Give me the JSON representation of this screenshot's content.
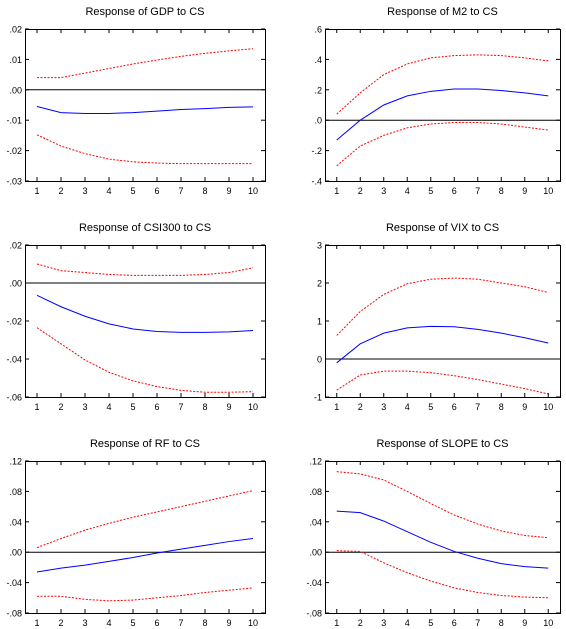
{
  "chart_data": [
    {
      "type": "line",
      "title": "Response of GDP to CS",
      "x": [
        1,
        2,
        3,
        4,
        5,
        6,
        7,
        8,
        9,
        10
      ],
      "ylim": [
        -0.03,
        0.02
      ],
      "yticks": [
        ".02",
        ".01",
        ".00",
        "-.01",
        "-.02",
        "-.03"
      ],
      "ytick_values": [
        0.02,
        0.01,
        0.0,
        -0.01,
        -0.02,
        -0.03
      ],
      "series": [
        {
          "role": "response",
          "color": "#0000ff",
          "style": "solid",
          "values": [
            -0.0055,
            -0.0075,
            -0.0078,
            -0.0078,
            -0.0075,
            -0.007,
            -0.0065,
            -0.0062,
            -0.0058,
            -0.0056
          ]
        },
        {
          "role": "upper band",
          "color": "#ff0000",
          "style": "dotted",
          "values": [
            0.004,
            0.004,
            0.0055,
            0.007,
            0.0085,
            0.0098,
            0.011,
            0.012,
            0.0128,
            0.0135
          ]
        },
        {
          "role": "lower band",
          "color": "#ff0000",
          "style": "dotted",
          "values": [
            -0.0148,
            -0.0185,
            -0.021,
            -0.0228,
            -0.0237,
            -0.0241,
            -0.0243,
            -0.0243,
            -0.0243,
            -0.0243
          ]
        }
      ]
    },
    {
      "type": "line",
      "title": "Response of M2 to CS",
      "x": [
        1,
        2,
        3,
        4,
        5,
        6,
        7,
        8,
        9,
        10
      ],
      "ylim": [
        -0.4,
        0.6
      ],
      "yticks": [
        ".6",
        ".4",
        ".2",
        ".0",
        "-.2",
        "-.4"
      ],
      "ytick_values": [
        0.6,
        0.4,
        0.2,
        0.0,
        -0.2,
        -0.4
      ],
      "series": [
        {
          "role": "response",
          "color": "#0000ff",
          "style": "solid",
          "values": [
            -0.13,
            0.0,
            0.1,
            0.16,
            0.19,
            0.205,
            0.205,
            0.195,
            0.18,
            0.16
          ]
        },
        {
          "role": "upper band",
          "color": "#ff0000",
          "style": "dotted",
          "values": [
            0.04,
            0.18,
            0.3,
            0.37,
            0.41,
            0.425,
            0.43,
            0.425,
            0.41,
            0.39
          ]
        },
        {
          "role": "lower band",
          "color": "#ff0000",
          "style": "dotted",
          "values": [
            -0.3,
            -0.17,
            -0.1,
            -0.05,
            -0.025,
            -0.015,
            -0.015,
            -0.025,
            -0.045,
            -0.065
          ]
        }
      ]
    },
    {
      "type": "line",
      "title": "Response of CSI300 to CS",
      "x": [
        1,
        2,
        3,
        4,
        5,
        6,
        7,
        8,
        9,
        10
      ],
      "ylim": [
        -0.06,
        0.02
      ],
      "yticks": [
        ".02",
        ".00",
        "-.02",
        "-.04",
        "-.06"
      ],
      "ytick_values": [
        0.02,
        0.0,
        -0.02,
        -0.04,
        -0.06
      ],
      "series": [
        {
          "role": "response",
          "color": "#0000ff",
          "style": "solid",
          "values": [
            -0.0065,
            -0.0125,
            -0.0175,
            -0.0215,
            -0.0242,
            -0.0255,
            -0.026,
            -0.026,
            -0.0257,
            -0.025
          ]
        },
        {
          "role": "upper band",
          "color": "#ff0000",
          "style": "dotted",
          "values": [
            0.01,
            0.0065,
            0.0055,
            0.0045,
            0.004,
            0.004,
            0.004,
            0.0045,
            0.0055,
            0.008
          ]
        },
        {
          "role": "lower band",
          "color": "#ff0000",
          "style": "dotted",
          "values": [
            -0.0235,
            -0.032,
            -0.0405,
            -0.047,
            -0.0515,
            -0.0545,
            -0.0565,
            -0.0575,
            -0.0575,
            -0.0572
          ]
        }
      ]
    },
    {
      "type": "line",
      "title": "Response of VIX to CS",
      "x": [
        1,
        2,
        3,
        4,
        5,
        6,
        7,
        8,
        9,
        10
      ],
      "ylim": [
        -1,
        3
      ],
      "yticks": [
        "3",
        "2",
        "1",
        "0",
        "-1"
      ],
      "ytick_values": [
        3,
        2,
        1,
        0,
        -1
      ],
      "series": [
        {
          "role": "response",
          "color": "#0000ff",
          "style": "solid",
          "values": [
            -0.1,
            0.4,
            0.68,
            0.82,
            0.86,
            0.85,
            0.78,
            0.68,
            0.56,
            0.42
          ]
        },
        {
          "role": "upper band",
          "color": "#ff0000",
          "style": "dotted",
          "values": [
            0.62,
            1.25,
            1.7,
            1.98,
            2.1,
            2.13,
            2.1,
            2.0,
            1.9,
            1.75
          ]
        },
        {
          "role": "lower band",
          "color": "#ff0000",
          "style": "dotted",
          "values": [
            -0.82,
            -0.42,
            -0.32,
            -0.32,
            -0.36,
            -0.44,
            -0.54,
            -0.66,
            -0.78,
            -0.92
          ]
        }
      ]
    },
    {
      "type": "line",
      "title": "Response of RF to CS",
      "x": [
        1,
        2,
        3,
        4,
        5,
        6,
        7,
        8,
        9,
        10
      ],
      "ylim": [
        -0.08,
        0.12
      ],
      "yticks": [
        ".12",
        ".08",
        ".04",
        ".00",
        "-.04",
        "-.08"
      ],
      "ytick_values": [
        0.12,
        0.08,
        0.04,
        0.0,
        -0.04,
        -0.08
      ],
      "series": [
        {
          "role": "response",
          "color": "#0000ff",
          "style": "solid",
          "values": [
            -0.026,
            -0.021,
            -0.017,
            -0.012,
            -0.007,
            -0.001,
            0.004,
            0.009,
            0.014,
            0.018
          ]
        },
        {
          "role": "upper band",
          "color": "#ff0000",
          "style": "dotted",
          "values": [
            0.006,
            0.018,
            0.029,
            0.038,
            0.046,
            0.053,
            0.06,
            0.067,
            0.074,
            0.081
          ]
        },
        {
          "role": "lower band",
          "color": "#ff0000",
          "style": "dotted",
          "values": [
            -0.058,
            -0.058,
            -0.062,
            -0.064,
            -0.063,
            -0.06,
            -0.057,
            -0.053,
            -0.05,
            -0.047
          ]
        }
      ]
    },
    {
      "type": "line",
      "title": "Response of SLOPE to CS",
      "x": [
        1,
        2,
        3,
        4,
        5,
        6,
        7,
        8,
        9,
        10
      ],
      "ylim": [
        -0.08,
        0.12
      ],
      "yticks": [
        ".12",
        ".08",
        ".04",
        ".00",
        "-.04",
        "-.08"
      ],
      "ytick_values": [
        0.12,
        0.08,
        0.04,
        0.0,
        -0.04,
        -0.08
      ],
      "series": [
        {
          "role": "response",
          "color": "#0000ff",
          "style": "solid",
          "values": [
            0.054,
            0.052,
            0.041,
            0.027,
            0.013,
            0.001,
            -0.008,
            -0.015,
            -0.019,
            -0.021
          ]
        },
        {
          "role": "upper band",
          "color": "#ff0000",
          "style": "dotted",
          "values": [
            0.106,
            0.103,
            0.095,
            0.08,
            0.064,
            0.049,
            0.037,
            0.028,
            0.022,
            0.019
          ]
        },
        {
          "role": "lower band",
          "color": "#ff0000",
          "style": "dotted",
          "values": [
            0.002,
            0.001,
            -0.014,
            -0.027,
            -0.038,
            -0.047,
            -0.053,
            -0.057,
            -0.059,
            -0.06
          ]
        }
      ]
    }
  ]
}
